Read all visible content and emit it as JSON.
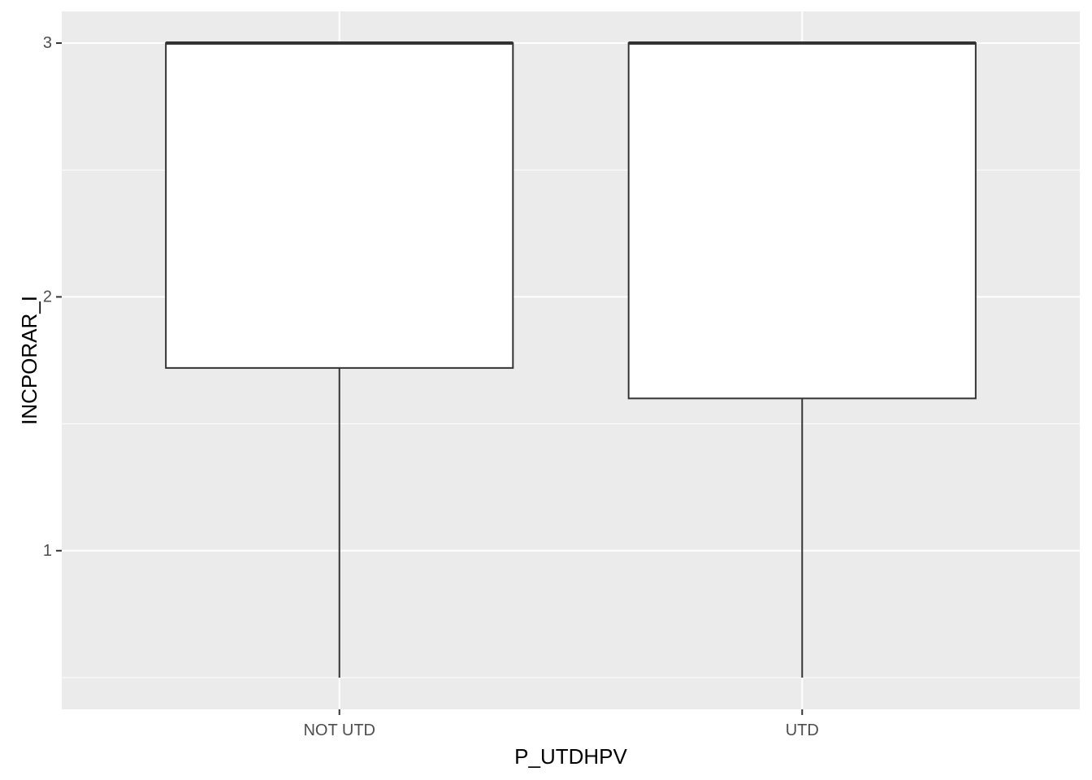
{
  "chart_data": {
    "type": "boxplot",
    "xlabel": "P_UTDHPV",
    "ylabel": "INCPORAR_I",
    "categories": [
      "NOT UTD",
      "UTD"
    ],
    "boxes": [
      {
        "category": "NOT UTD",
        "whisker_low": 0.5,
        "q1": 1.72,
        "median": 3,
        "q3": 3,
        "whisker_high": 3
      },
      {
        "category": "UTD",
        "whisker_low": 0.5,
        "q1": 1.6,
        "median": 3,
        "q3": 3,
        "whisker_high": 3
      }
    ],
    "y_ticks": [
      1,
      2,
      3
    ],
    "ylim": [
      0.375,
      3.125
    ],
    "grid": true,
    "colors": {
      "panel_background": "#ebebeb",
      "grid_major": "#ffffff",
      "grid_minor": "#f7f7f7",
      "box_fill": "#ffffff",
      "box_stroke": "#333333",
      "tick_text": "#4d4d4d",
      "tick_mark": "#333333",
      "title_text": "#000000"
    }
  }
}
